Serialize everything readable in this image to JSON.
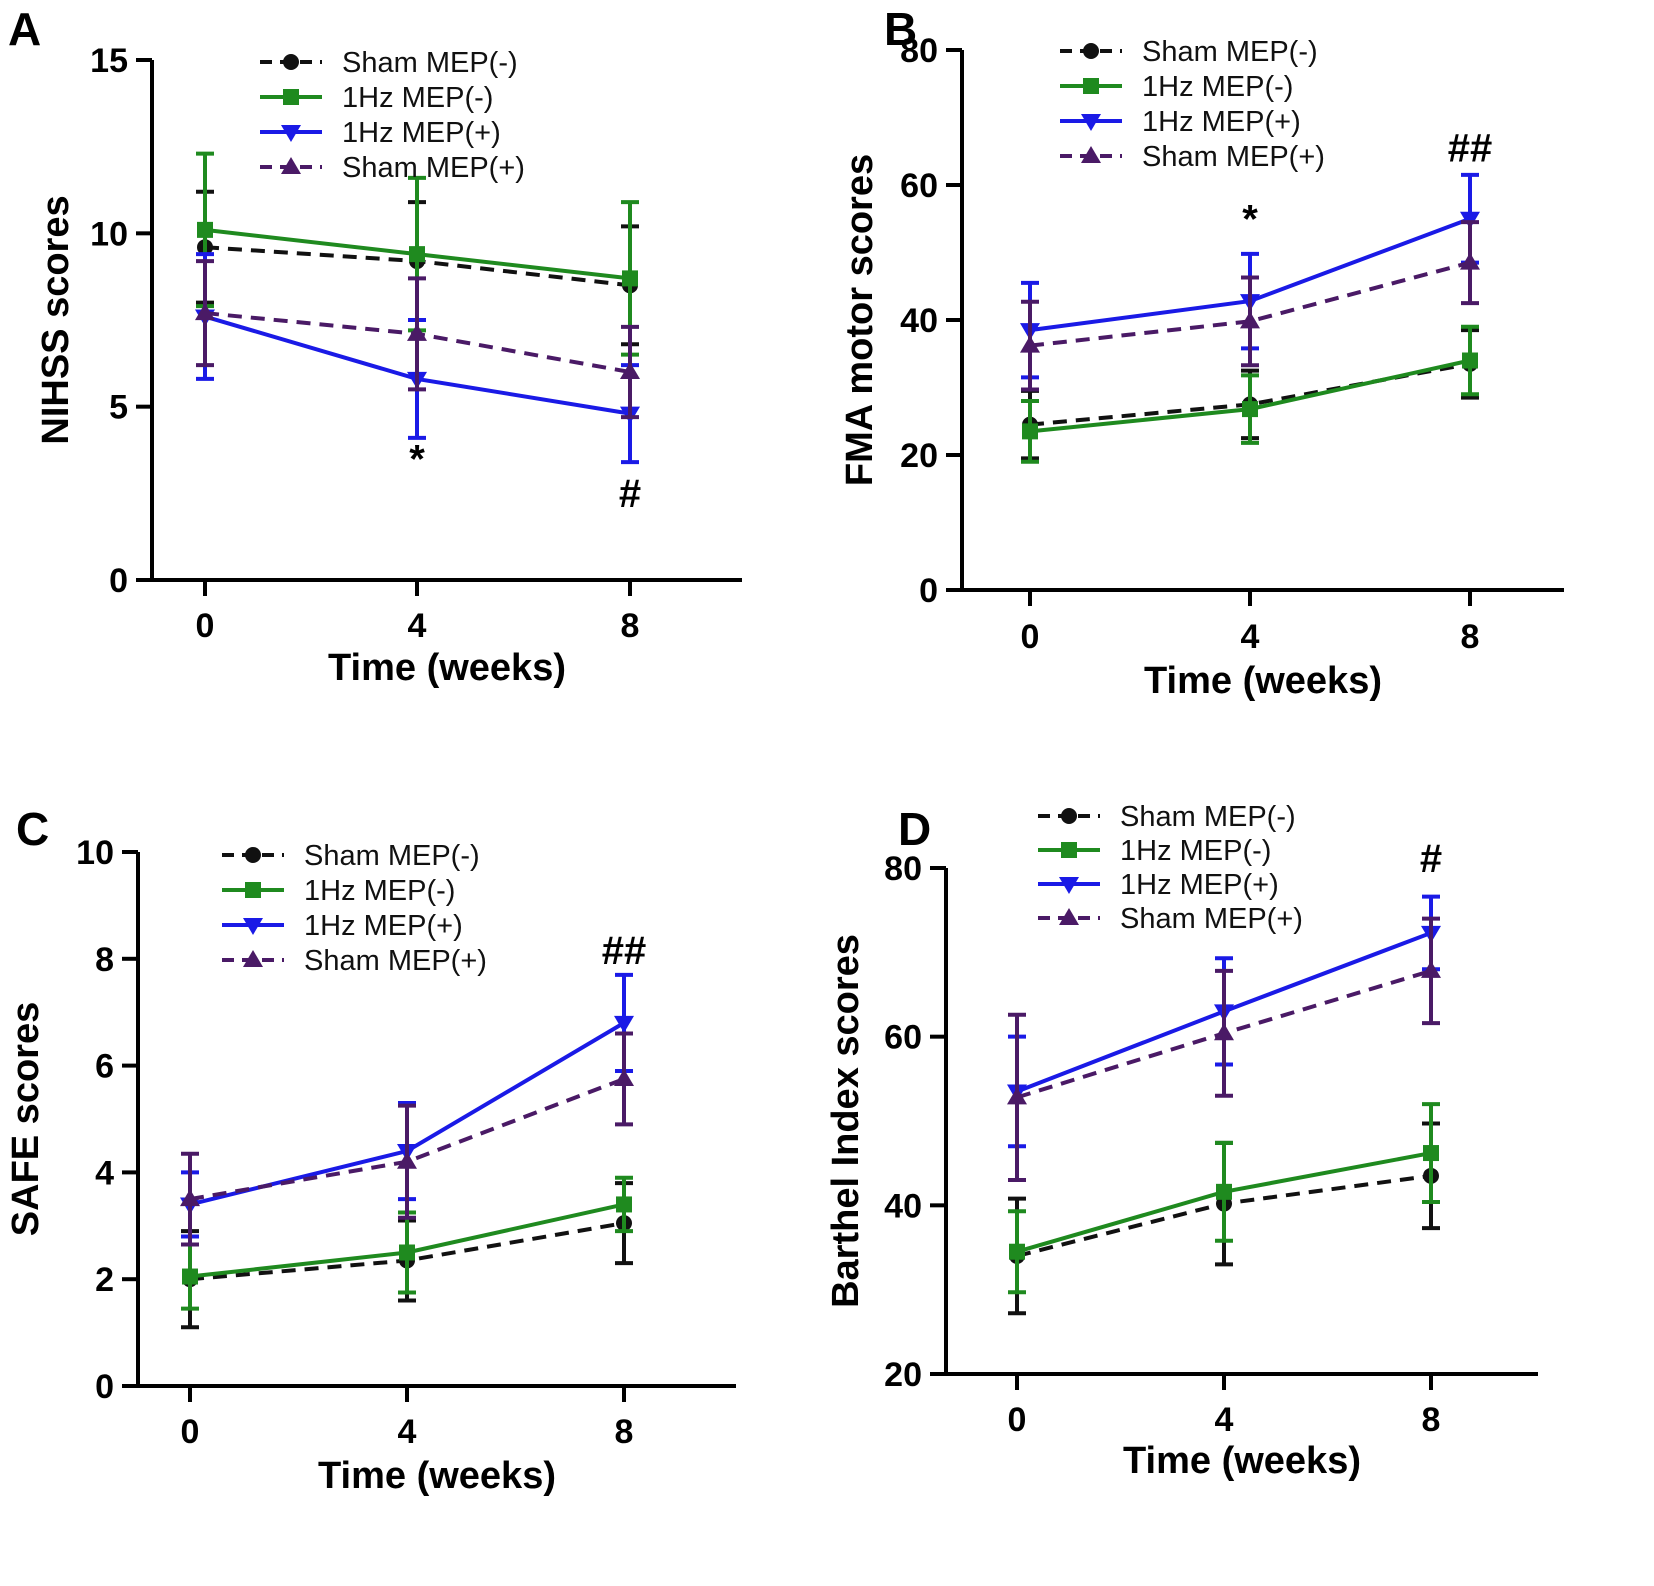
{
  "colors": {
    "sham_minus": "#111111",
    "hz_minus": "#1f8a1f",
    "hz_plus": "#1a1ae6",
    "sham_plus": "#4a1a66"
  },
  "chart_data": [
    {
      "panel": "A",
      "type": "line",
      "xlabel": "Time (weeks)",
      "ylabel": "NIHSS scores",
      "x": [
        0,
        4,
        8
      ],
      "xticks": [
        "0",
        "4",
        "8"
      ],
      "ylim": [
        0,
        15
      ],
      "yticks": [
        "0",
        "5",
        "10",
        "15"
      ],
      "legend": [
        "Sham  MEP(-)",
        "1Hz MEP(-)",
        "1Hz MEP(+)",
        "Sham MEP(+)"
      ],
      "series": [
        {
          "name": "Sham  MEP(-)",
          "values": [
            9.6,
            9.2,
            8.5
          ],
          "error": [
            1.6,
            1.7,
            1.7
          ]
        },
        {
          "name": "1Hz MEP(-)",
          "values": [
            10.1,
            9.4,
            8.7
          ],
          "error": [
            2.2,
            2.2,
            2.2
          ]
        },
        {
          "name": "1Hz MEP(+)",
          "values": [
            7.6,
            5.8,
            4.8
          ],
          "error": [
            1.8,
            1.7,
            1.4
          ]
        },
        {
          "name": "Sham MEP(+)",
          "values": [
            7.7,
            7.1,
            6.0
          ],
          "error": [
            1.5,
            1.6,
            1.3
          ]
        }
      ],
      "annotations": [
        {
          "text": "*",
          "x": 4,
          "y": 3.1
        },
        {
          "text": "#",
          "x": 8,
          "y": 2.1
        }
      ]
    },
    {
      "panel": "B",
      "type": "line",
      "xlabel": "Time (weeks)",
      "ylabel": "FMA motor scores",
      "x": [
        0,
        4,
        8
      ],
      "xticks": [
        "0",
        "4",
        "8"
      ],
      "ylim": [
        0,
        80
      ],
      "yticks": [
        "0",
        "20",
        "40",
        "60",
        "80"
      ],
      "legend": [
        "Sham  MEP(-)",
        "1Hz MEP(-)",
        "1Hz MEP(+)",
        "Sham MEP(+)"
      ],
      "series": [
        {
          "name": "Sham  MEP(-)",
          "values": [
            24.5,
            27.5,
            33.5
          ],
          "error": [
            5,
            5,
            5
          ]
        },
        {
          "name": "1Hz MEP(-)",
          "values": [
            23.5,
            26.8,
            34.0
          ],
          "error": [
            4.5,
            5,
            5
          ]
        },
        {
          "name": "1Hz MEP(+)",
          "values": [
            38.5,
            42.8,
            55.0
          ],
          "error": [
            7,
            7,
            6.5
          ]
        },
        {
          "name": "Sham MEP(+)",
          "values": [
            36.2,
            39.8,
            48.5
          ],
          "error": [
            6.5,
            6.5,
            6
          ]
        }
      ],
      "annotations": [
        {
          "text": "*",
          "x": 4,
          "y": 53
        },
        {
          "text": "##",
          "x": 8,
          "y": 63.5
        }
      ]
    },
    {
      "panel": "C",
      "type": "line",
      "xlabel": "Time (weeks)",
      "ylabel": "SAFE scores",
      "x": [
        0,
        4,
        8
      ],
      "xticks": [
        "0",
        "4",
        "8"
      ],
      "ylim": [
        0,
        10
      ],
      "yticks": [
        "0",
        "2",
        "4",
        "6",
        "8",
        "10"
      ],
      "legend": [
        "Sham  MEP(-)",
        "1Hz MEP(-)",
        "1Hz MEP(+)",
        "Sham MEP(+)"
      ],
      "series": [
        {
          "name": "Sham  MEP(-)",
          "values": [
            2.0,
            2.35,
            3.05
          ],
          "error": [
            0.9,
            0.75,
            0.75
          ]
        },
        {
          "name": "1Hz MEP(-)",
          "values": [
            2.05,
            2.5,
            3.4
          ],
          "error": [
            0.6,
            0.75,
            0.5
          ]
        },
        {
          "name": "1Hz MEP(+)",
          "values": [
            3.4,
            4.4,
            6.8
          ],
          "error": [
            0.6,
            0.9,
            0.9
          ]
        },
        {
          "name": "Sham MEP(+)",
          "values": [
            3.5,
            4.2,
            5.75
          ],
          "error": [
            0.85,
            1.05,
            0.85
          ]
        }
      ],
      "annotations": [
        {
          "text": "##",
          "x": 8,
          "y": 7.9
        }
      ]
    },
    {
      "panel": "D",
      "type": "line",
      "xlabel": "Time (weeks)",
      "ylabel": "Barthel Index scores",
      "x": [
        0,
        4,
        8
      ],
      "xticks": [
        "0",
        "4",
        "8"
      ],
      "ylim": [
        20,
        80
      ],
      "yticks": [
        "20",
        "40",
        "60",
        "80"
      ],
      "legend": [
        "Sham  MEP(-)",
        "1Hz MEP(-)",
        "1Hz MEP(+)",
        "Sham MEP(+)"
      ],
      "series": [
        {
          "name": "Sham  MEP(-)",
          "values": [
            34.0,
            40.2,
            43.5
          ],
          "error": [
            6.8,
            7.2,
            6.2
          ]
        },
        {
          "name": "1Hz MEP(-)",
          "values": [
            34.5,
            41.6,
            46.2
          ],
          "error": [
            4.8,
            5.8,
            5.8
          ]
        },
        {
          "name": "1Hz MEP(+)",
          "values": [
            53.5,
            63.0,
            72.3
          ],
          "error": [
            6.5,
            6.3,
            4.3
          ]
        },
        {
          "name": "Sham MEP(+)",
          "values": [
            52.8,
            60.4,
            67.8
          ],
          "error": [
            9.8,
            7.4,
            6.2
          ]
        }
      ],
      "annotations": [
        {
          "text": "#",
          "x": 8,
          "y": 79.5
        }
      ]
    }
  ]
}
